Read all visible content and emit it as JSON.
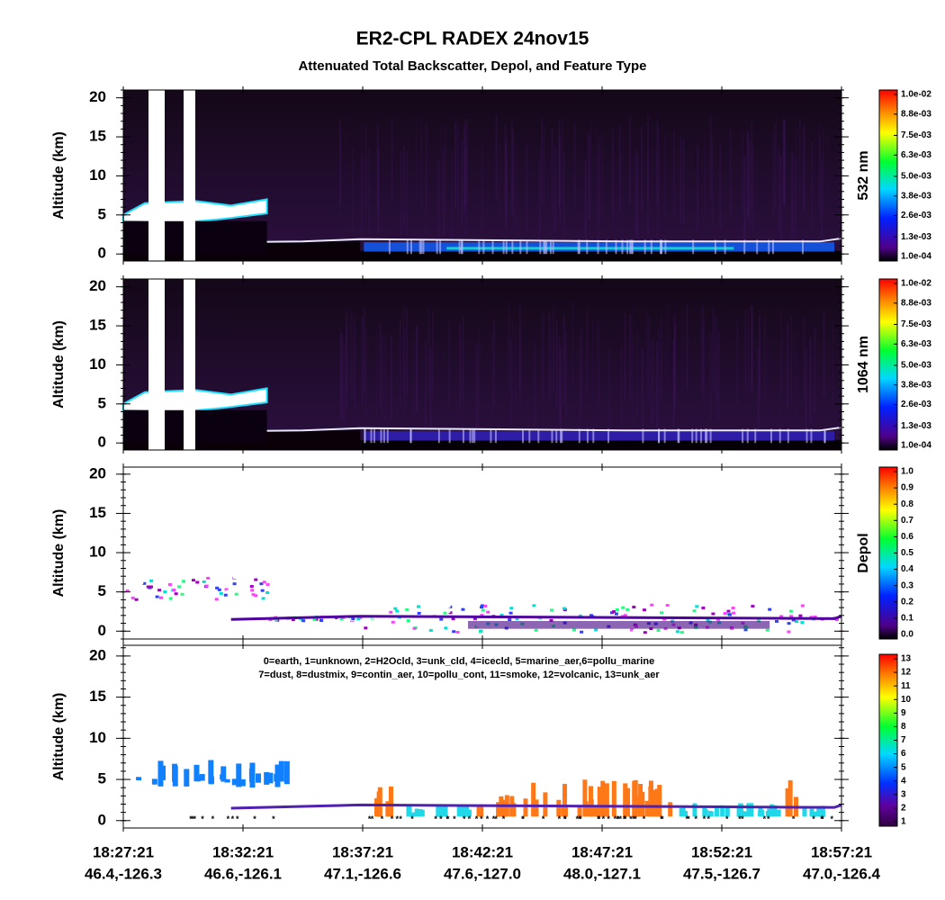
{
  "chart_data": {
    "type": "curtain",
    "title": "ER2-CPL RADEX 24nov15",
    "subtitle": "Attenuated Total Backscatter, Depol, and Feature Type",
    "categories": [
      "18:27:21",
      "18:32:21",
      "18:37:21",
      "18:42:21",
      "18:47:21",
      "18:52:21",
      "18:57:21"
    ],
    "locations": [
      "46.4,-126.3",
      "46.6,-126.1",
      "47.1,-126.6",
      "47.6,-127.0",
      "48.0,-127.1",
      "47.5,-126.7",
      "47.0,-126.4"
    ],
    "panels": [
      {
        "y_label": "Altitude (km)",
        "ylim": [
          -0.9,
          21
        ],
        "yticks": [
          0,
          5,
          10,
          15,
          20
        ],
        "side_label": "532 nm",
        "clim": [
          0.0001,
          0.01
        ],
        "cticks": [
          {
            "value": 0.0001,
            "label": "1.0e-04"
          },
          {
            "value": 0.0013,
            "label": "1.3e-03"
          },
          {
            "value": 0.0026,
            "label": "2.6e-03"
          },
          {
            "value": 0.0038,
            "label": "3.8e-03"
          },
          {
            "value": 0.005,
            "label": "5.0e-03"
          },
          {
            "value": 0.0063,
            "label": "6.3e-03"
          },
          {
            "value": 0.0075,
            "label": "7.5e-03"
          },
          {
            "value": 0.0088,
            "label": "8.8e-03"
          },
          {
            "value": 0.01,
            "label": "1.0e-02"
          }
        ]
      },
      {
        "y_label": "Altitude (km)",
        "ylim": [
          -0.9,
          21
        ],
        "yticks": [
          0,
          5,
          10,
          15,
          20
        ],
        "side_label": "1064 nm",
        "clim": [
          0.0001,
          0.01
        ],
        "cticks": [
          {
            "value": 0.0001,
            "label": "1.0e-04"
          },
          {
            "value": 0.0013,
            "label": "1.3e-03"
          },
          {
            "value": 0.0026,
            "label": "2.6e-03"
          },
          {
            "value": 0.0038,
            "label": "3.8e-03"
          },
          {
            "value": 0.005,
            "label": "5.0e-03"
          },
          {
            "value": 0.0063,
            "label": "6.3e-03"
          },
          {
            "value": 0.0075,
            "label": "7.5e-03"
          },
          {
            "value": 0.0088,
            "label": "8.8e-03"
          },
          {
            "value": 0.01,
            "label": "1.0e-02"
          }
        ]
      },
      {
        "y_label": "Altitude (km)",
        "ylim": [
          -1,
          20.9
        ],
        "yticks": [
          0,
          5,
          10,
          15,
          20
        ],
        "side_label": "Depol",
        "clim": [
          0,
          1
        ],
        "cticks": [
          {
            "value": 0,
            "label": "0.0"
          },
          0.1,
          0.2,
          0.3,
          0.4,
          0.5,
          0.6,
          0.7,
          0.8,
          0.9,
          {
            "value": 1,
            "label": "1.0"
          }
        ]
      },
      {
        "y_label": "Altitude (km)",
        "ylim": [
          -0.9,
          21.3
        ],
        "yticks": [
          0,
          5,
          10,
          15,
          20
        ],
        "legend": [
          "0=earth, 1=unknown, 2=H2Ocld, 3=unk_cld, 4=icecld, 5=marine_aer,6=pollu_marine",
          "7=dust, 8=dustmix, 9=contin_aer, 10=pollu_cont, 11=smoke, 12=volcanic, 13=unk_aer"
        ],
        "clim": [
          1,
          13
        ],
        "cticks": [
          1,
          2,
          3,
          4,
          5,
          6,
          7,
          8,
          9,
          10,
          11,
          12,
          13
        ]
      }
    ]
  }
}
